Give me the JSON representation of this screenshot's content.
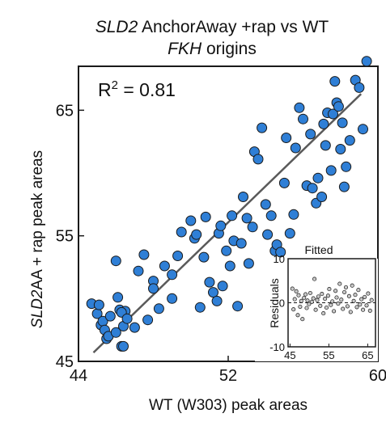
{
  "chart_data": [
    {
      "type": "scatter",
      "title_line1_italic": "SLD2",
      "title_line1_rest": " AnchorAway +rap  vs WT",
      "title_line2_italic": "FKH",
      "title_line2_rest": " origins",
      "xlabel": "WT (W303) peak areas",
      "ylabel_italic": "SLD2",
      "ylabel_rest": "AA + rap peak areas",
      "annotation_r2_base": "R",
      "annotation_r2_sup": "2",
      "annotation_r2_value": " = 0.81",
      "xlim": [
        44,
        60
      ],
      "ylim": [
        45,
        68.5
      ],
      "xticks": [
        "44",
        "52",
        "60"
      ],
      "yticks": [
        "45",
        "55",
        "65"
      ],
      "xtick_values": [
        44,
        52,
        60
      ],
      "ytick_values": [
        45,
        55,
        65
      ],
      "point_color": "#2f7fd6",
      "point_edge_color": "#1a1a1a",
      "fit_line_color": "#5a5a5a",
      "fit_line": {
        "x": [
          44.8,
          59.1
        ],
        "y": [
          45.7,
          66.3
        ]
      },
      "x": [
        44.7,
        45.0,
        45.1,
        45.2,
        45.3,
        45.4,
        45.5,
        45.6,
        45.7,
        46.0,
        46.2,
        46.0,
        46.3,
        46.4,
        46.1,
        46.5,
        46.4,
        46.3,
        46.6,
        47.0,
        47.2,
        47.5,
        47.7,
        48.0,
        48.0,
        48.3,
        48.6,
        49.0,
        49.0,
        49.3,
        49.5,
        50.0,
        50.2,
        50.3,
        50.5,
        50.7,
        50.8,
        51.0,
        51.2,
        51.4,
        51.5,
        51.6,
        51.7,
        51.9,
        52.1,
        52.2,
        52.3,
        52.5,
        52.7,
        52.8,
        53.0,
        53.1,
        53.3,
        53.4,
        53.6,
        53.8,
        54.0,
        54.1,
        54.3,
        54.5,
        54.6,
        54.8,
        55.0,
        55.1,
        55.3,
        55.5,
        55.6,
        55.8,
        56.0,
        56.2,
        56.4,
        56.5,
        56.7,
        56.8,
        57.0,
        57.1,
        57.2,
        57.3,
        57.5,
        57.6,
        57.7,
        57.8,
        57.9,
        58.0,
        58.1,
        58.2,
        58.3,
        58.5,
        58.8,
        59.0,
        59.2,
        59.4
      ],
      "y": [
        49.6,
        48.8,
        49.5,
        47.9,
        48.2,
        47.5,
        46.8,
        47.0,
        48.6,
        47.3,
        49.1,
        53.0,
        46.2,
        47.8,
        50.1,
        49.0,
        46.2,
        48.9,
        48.4,
        47.7,
        52.2,
        53.5,
        48.3,
        51.4,
        50.8,
        49.2,
        52.6,
        51.9,
        50.0,
        53.4,
        55.3,
        56.2,
        54.8,
        55.1,
        49.3,
        53.3,
        56.5,
        51.3,
        50.5,
        49.8,
        55.2,
        55.8,
        51.0,
        53.8,
        52.6,
        56.6,
        54.6,
        49.4,
        54.4,
        58.1,
        56.4,
        52.8,
        55.7,
        61.7,
        61.1,
        63.6,
        57.5,
        55.1,
        56.6,
        53.8,
        54.3,
        53.7,
        59.2,
        62.8,
        55.2,
        56.7,
        62.0,
        65.2,
        64.3,
        59.0,
        63.1,
        58.8,
        57.6,
        59.6,
        58.1,
        63.9,
        62.2,
        64.8,
        60.2,
        64.7,
        67.3,
        65.6,
        65.3,
        61.9,
        64.0,
        58.9,
        60.5,
        62.6,
        67.4,
        66.8,
        63.5,
        68.9
      ]
    },
    {
      "type": "scatter",
      "title": "Fitted",
      "ylabel": "Residuals",
      "xlim": [
        44.5,
        67
      ],
      "ylim": [
        -10,
        10
      ],
      "xticks": [
        "45",
        "55",
        "65"
      ],
      "yticks": [
        "10",
        "0",
        "-10"
      ],
      "xtick_values": [
        45,
        55,
        65
      ],
      "ytick_values": [
        10,
        0,
        -10
      ],
      "zero_line": "dashed",
      "x": [
        45.6,
        45.9,
        46.2,
        46.6,
        47.0,
        47.2,
        47.6,
        47.9,
        48.2,
        48.6,
        49.0,
        49.3,
        49.5,
        49.9,
        50.2,
        50.6,
        51.0,
        51.3,
        51.6,
        52.0,
        52.3,
        52.8,
        53.2,
        53.6,
        54.0,
        54.4,
        54.8,
        55.1,
        55.5,
        55.9,
        56.3,
        56.7,
        57.0,
        57.4,
        57.8,
        58.2,
        58.6,
        59.0,
        59.4,
        59.8,
        60.2,
        60.6,
        61.0,
        61.4,
        61.8,
        62.2,
        62.6,
        63.0,
        63.4,
        63.8,
        64.2,
        64.7,
        65.1,
        65.6,
        66.0
      ],
      "y": [
        3.2,
        -1.5,
        0.8,
        2.6,
        -2.8,
        1.7,
        -0.9,
        0.4,
        -3.7,
        1.1,
        1.9,
        -1.2,
        0.5,
        -0.3,
        2.2,
        0.2,
        1.0,
        5.4,
        -1.6,
        0.6,
        1.4,
        -0.7,
        2.0,
        -2.4,
        0.9,
        -1.1,
        1.6,
        3.1,
        -0.5,
        0.3,
        -1.9,
        2.7,
        1.2,
        -0.2,
        4.3,
        0.7,
        -1.4,
        2.4,
        3.5,
        -0.8,
        1.5,
        -2.1,
        3.9,
        0.4,
        1.8,
        -1.0,
        2.9,
        -0.4,
        0.8,
        -1.6,
        1.3,
        -0.6,
        2.1,
        -1.8,
        0.6
      ]
    }
  ]
}
